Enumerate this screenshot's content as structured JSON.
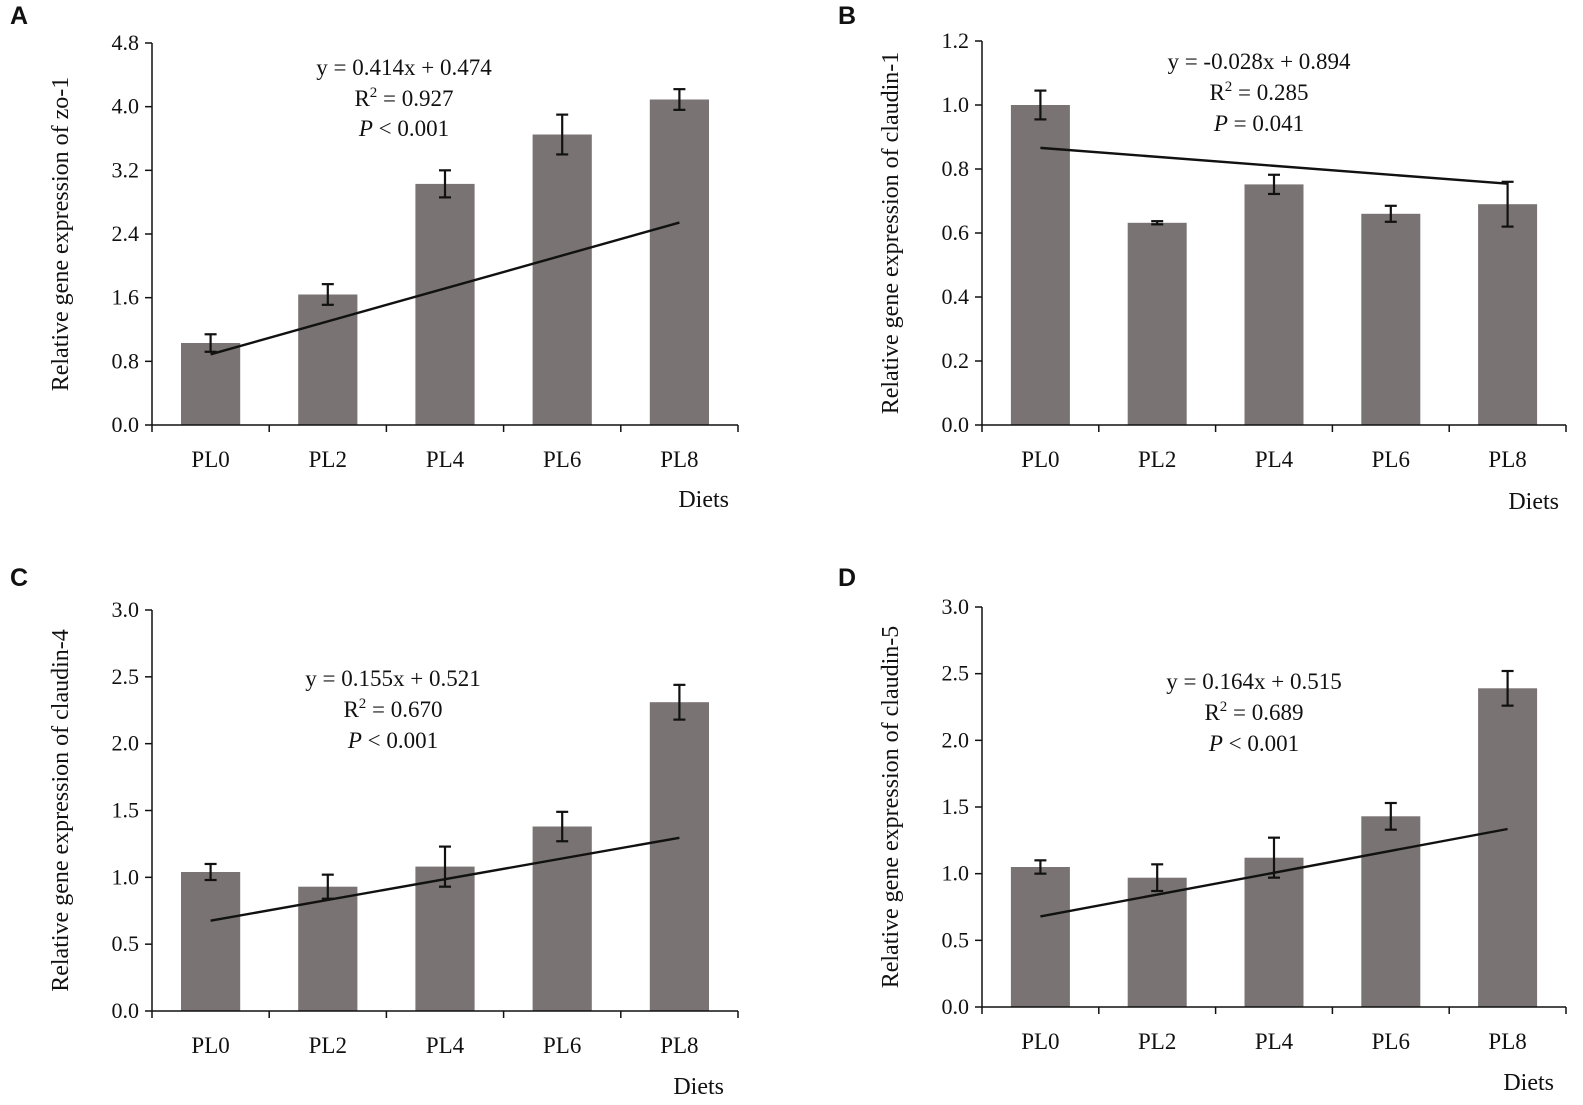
{
  "figure": {
    "bar_color": "#797373",
    "line_color": "#111111",
    "axis_color": "#111111"
  },
  "chart_data": [
    {
      "panel": "A",
      "type": "bar",
      "categories": [
        "PL0",
        "PL2",
        "PL4",
        "PL6",
        "PL8"
      ],
      "values": [
        1.03,
        1.64,
        3.03,
        3.65,
        4.09
      ],
      "errors": [
        0.11,
        0.13,
        0.17,
        0.25,
        0.13
      ],
      "xlabel": "Diets",
      "ylabel": "Relative gene expression of zo-1",
      "ylim": [
        0,
        4.8
      ],
      "yticks": [
        0,
        0.8,
        1.6,
        2.4,
        3.2,
        4.0,
        4.8
      ],
      "ytick_labels": [
        "0.0",
        "0.8",
        "1.6",
        "2.4",
        "3.2",
        "4.0",
        "4.8"
      ],
      "trendline": {
        "slope": 0.414,
        "intercept": 0.474
      },
      "annotation": {
        "equation": "y = 0.414x + 0.474",
        "r2_prefix": "R",
        "r2_value": " = 0.927",
        "p_symbol": "P",
        "p_value": " < 0.001"
      },
      "grid": false
    },
    {
      "panel": "B",
      "type": "bar",
      "categories": [
        "PL0",
        "PL2",
        "PL4",
        "PL6",
        "PL8"
      ],
      "values": [
        1.0,
        0.632,
        0.752,
        0.66,
        0.69
      ],
      "errors": [
        0.045,
        0.005,
        0.03,
        0.025,
        0.07
      ],
      "xlabel": "Diets",
      "ylabel": "Relative gene expression of claudin-1",
      "ylim": [
        0,
        1.2
      ],
      "yticks": [
        0,
        0.2,
        0.4,
        0.6,
        0.8,
        1.0,
        1.2
      ],
      "ytick_labels": [
        "0.0",
        "0.2",
        "0.4",
        "0.6",
        "0.8",
        "1.0",
        "1.2"
      ],
      "trendline": {
        "slope": -0.028,
        "intercept": 0.894
      },
      "annotation": {
        "equation": "y = -0.028x + 0.894",
        "r2_prefix": "R",
        "r2_value": " = 0.285",
        "p_symbol": "P",
        "p_value": " = 0.041"
      },
      "grid": false
    },
    {
      "panel": "C",
      "type": "bar",
      "categories": [
        "PL0",
        "PL2",
        "PL4",
        "PL6",
        "PL8"
      ],
      "values": [
        1.04,
        0.93,
        1.08,
        1.38,
        2.31
      ],
      "errors": [
        0.06,
        0.09,
        0.15,
        0.11,
        0.13
      ],
      "xlabel": "Diets",
      "ylabel": "Relative gene expression of claudin-4",
      "ylim": [
        0,
        3.0
      ],
      "yticks": [
        0,
        0.5,
        1.0,
        1.5,
        2.0,
        2.5,
        3.0
      ],
      "ytick_labels": [
        "0.0",
        "0.5",
        "1.0",
        "1.5",
        "2.0",
        "2.5",
        "3.0"
      ],
      "trendline": {
        "slope": 0.155,
        "intercept": 0.521
      },
      "annotation": {
        "equation": "y = 0.155x + 0.521",
        "r2_prefix": "R",
        "r2_value": " = 0.670",
        "p_symbol": "P",
        "p_value": " < 0.001"
      },
      "grid": false
    },
    {
      "panel": "D",
      "type": "bar",
      "categories": [
        "PL0",
        "PL2",
        "PL4",
        "PL6",
        "PL8"
      ],
      "values": [
        1.05,
        0.97,
        1.12,
        1.43,
        2.39
      ],
      "errors": [
        0.05,
        0.1,
        0.15,
        0.1,
        0.13
      ],
      "xlabel": "Diets",
      "ylabel": "Relative gene expression of claudin-5",
      "ylim": [
        0,
        3.0
      ],
      "yticks": [
        0,
        0.5,
        1.0,
        1.5,
        2.0,
        2.5,
        3.0
      ],
      "ytick_labels": [
        "0.0",
        "0.5",
        "1.0",
        "1.5",
        "2.0",
        "2.5",
        "3.0"
      ],
      "trendline": {
        "slope": 0.164,
        "intercept": 0.515
      },
      "annotation": {
        "equation": "y = 0.164x + 0.515",
        "r2_prefix": "R",
        "r2_value": " = 0.689",
        "p_symbol": "P",
        "p_value": " < 0.001"
      },
      "grid": false
    }
  ]
}
